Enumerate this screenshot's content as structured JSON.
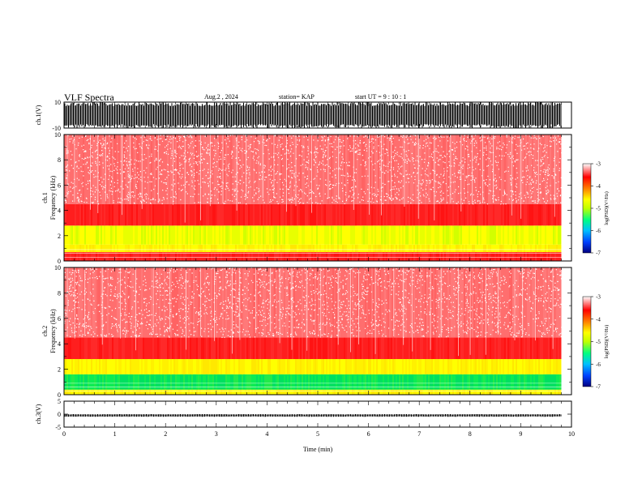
{
  "header": {
    "title": "VLF Spectra",
    "date": "Aug.2 , 2024",
    "station": "station= KAP",
    "start_ut": "start UT =  9 : 10 : 1"
  },
  "colors": {
    "background": "#ffffff",
    "waveform": "#000000",
    "spectrogram_base": "#ff1e1e",
    "spectrogram_low_band": [
      "#ffff00",
      "#80ff00",
      "#00e060"
    ],
    "colorbar": [
      "#000080",
      "#0040ff",
      "#00c0ff",
      "#00ff80",
      "#c0ff00",
      "#ffff00",
      "#ff8000",
      "#ff0000",
      "#ffffff"
    ]
  },
  "chart_data": [
    {
      "type": "line",
      "name": "ch1-waveform",
      "ylabel": "ch.1(V)",
      "ylim": [
        -10,
        10
      ],
      "yticks": [
        "10",
        "-10"
      ],
      "xlim": [
        0,
        10
      ],
      "data_end_min": 9.8,
      "amplitude_range_v": [
        -10,
        10
      ]
    },
    {
      "type": "heatmap",
      "name": "ch1-spectrogram",
      "ylabel_top": "ch.1",
      "ylabel": "Frequency (kHz)",
      "ylim": [
        0,
        10
      ],
      "yticks": [
        "0",
        "2",
        "4",
        "6",
        "8",
        "10"
      ],
      "xlim": [
        0,
        10
      ],
      "data_end_min": 9.8,
      "colorbar": {
        "label": "log(PSD)(V²/Hz)",
        "range": [
          -7,
          -3
        ],
        "ticks": [
          "-3",
          "-4",
          "-5",
          "-6",
          "-7"
        ]
      },
      "bands_khz": [
        {
          "from": 0,
          "to": 0.7,
          "level": "red"
        },
        {
          "from": 0.7,
          "to": 1.3,
          "level": "yellow"
        },
        {
          "from": 1.3,
          "to": 2.8,
          "level": "yellow-green"
        },
        {
          "from": 2.8,
          "to": 4.5,
          "level": "red"
        },
        {
          "from": 4.5,
          "to": 10,
          "level": "light-red"
        }
      ]
    },
    {
      "type": "heatmap",
      "name": "ch2-spectrogram",
      "ylabel_top": "ch.2",
      "ylabel": "Frequency (kHz)",
      "ylim": [
        0,
        10
      ],
      "yticks": [
        "0",
        "2",
        "4",
        "6",
        "8",
        "10"
      ],
      "xlim": [
        0,
        10
      ],
      "data_end_min": 9.8,
      "colorbar": {
        "label": "log(PSD)(V²/Hz)",
        "range": [
          -7,
          -3
        ],
        "ticks": [
          "-3",
          "-4",
          "-5",
          "-6",
          "-7"
        ]
      },
      "bands_khz": [
        {
          "from": 0,
          "to": 0.4,
          "level": "yellow"
        },
        {
          "from": 0.4,
          "to": 1.6,
          "level": "green"
        },
        {
          "from": 1.6,
          "to": 2.8,
          "level": "yellow"
        },
        {
          "from": 2.8,
          "to": 4.5,
          "level": "red"
        },
        {
          "from": 4.5,
          "to": 10,
          "level": "light-red"
        }
      ]
    },
    {
      "type": "line",
      "name": "ch3-waveform",
      "ylabel": "ch.3(V)",
      "ylim": [
        -5,
        5
      ],
      "yticks": [
        "5",
        "0",
        "-5"
      ],
      "xlim": [
        0,
        10
      ],
      "data_end_min": 9.8,
      "amplitude_range_v": [
        -1,
        0
      ],
      "xlabel": "Time (min)",
      "xticks": [
        "0",
        "1",
        "2",
        "3",
        "4",
        "5",
        "6",
        "7",
        "8",
        "9",
        "10"
      ]
    }
  ]
}
